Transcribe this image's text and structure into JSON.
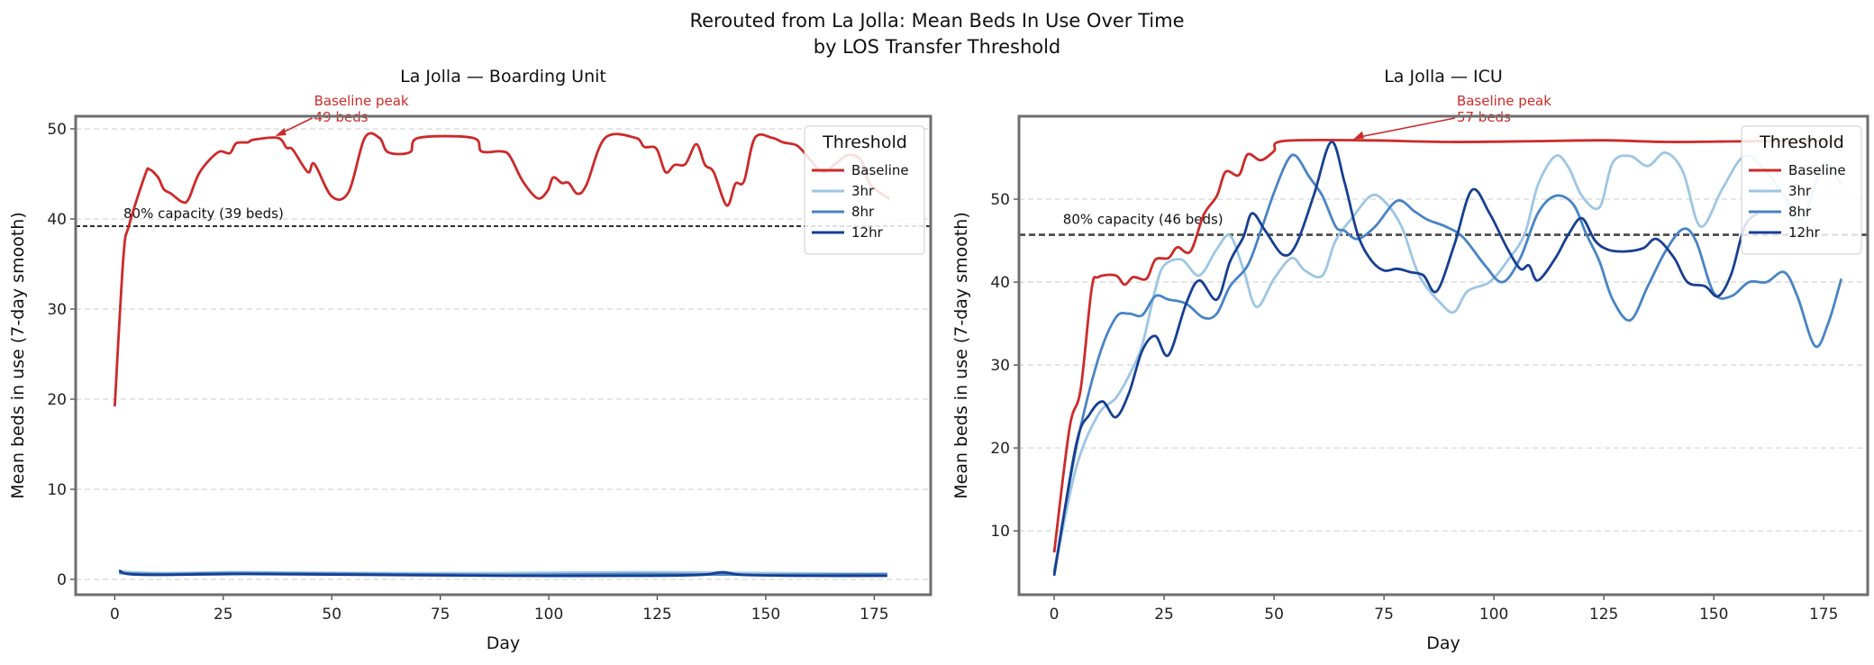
{
  "title_line1": "Rerouted from La Jolla: Mean Beds In Use Over Time",
  "title_line2": "by LOS Transfer Threshold",
  "colors": {
    "Baseline": "#cc2a2a",
    "3hr": "#9dc6e3",
    "8hr": "#4884c4",
    "12hr": "#173f92"
  },
  "chart_data": [
    {
      "type": "line",
      "title": "La Jolla — Boarding Unit",
      "xlabel": "Day",
      "ylabel": "Mean beds in use (7-day smooth)",
      "xlim": [
        -9,
        188
      ],
      "ylim": [
        -1.7,
        51.4
      ],
      "xticks": [
        0,
        25,
        50,
        75,
        100,
        125,
        150,
        175
      ],
      "yticks": [
        0,
        10,
        20,
        30,
        40,
        50
      ],
      "grid": "y, dashed",
      "legend": {
        "title": "Threshold",
        "placement": "top-right",
        "entries": [
          "Baseline",
          "3hr",
          "8hr",
          "12hr"
        ]
      },
      "capacity": {
        "value": 39.2,
        "label": "80% capacity (39 beds)"
      },
      "peak_annotation": {
        "x": 37,
        "y": 49,
        "line1": "Baseline peak",
        "line2": "49 beds"
      },
      "series": [
        {
          "name": "Baseline",
          "x": [
            0,
            2,
            3.3,
            7,
            8,
            10,
            11.3,
            13,
            15.5,
            17,
            19.6,
            23.8,
            26.5,
            28,
            30.7,
            32,
            37.6,
            39.6,
            41,
            44.5,
            46,
            50,
            53.9,
            57.6,
            61,
            63,
            68,
            70,
            82.5,
            84.5,
            89,
            91,
            94,
            97.4,
            99.7,
            101,
            103,
            104.6,
            106.6,
            108.7,
            113,
            120,
            122,
            124.8,
            126.9,
            129,
            131.5,
            134,
            136,
            138,
            141,
            143,
            145,
            147.5,
            151.5,
            154,
            157,
            159,
            163,
            166,
            169,
            172,
            174,
            178.5
          ],
          "y": [
            19.2,
            35.8,
            39.3,
            44.9,
            45.5,
            44.6,
            43.3,
            42.8,
            41.9,
            42.2,
            45.2,
            47.4,
            47.3,
            48.4,
            48.5,
            48.8,
            49.0,
            47.9,
            47.7,
            45.2,
            46.1,
            42.5,
            43.0,
            49.0,
            49.0,
            47.4,
            47.4,
            49.0,
            49.0,
            47.5,
            47.5,
            47.0,
            44.2,
            42.3,
            43.1,
            44.6,
            44.0,
            44.0,
            42.8,
            43.8,
            49.0,
            49.0,
            48.0,
            47.8,
            45.2,
            46.0,
            46.1,
            48.3,
            46.0,
            45.2,
            41.5,
            43.9,
            44.2,
            49.0,
            49.0,
            48.5,
            48.2,
            47.3,
            45.2,
            46.1,
            47.1,
            46.5,
            43.9,
            42.2
          ]
        },
        {
          "name": "3hr",
          "x": [
            1,
            10,
            30,
            60,
            90,
            120,
            150,
            178
          ],
          "y": [
            0.9,
            0.7,
            0.8,
            0.7,
            0.7,
            0.8,
            0.7,
            0.6
          ]
        },
        {
          "name": "8hr",
          "x": [
            1,
            10,
            30,
            60,
            90,
            120,
            150,
            178
          ],
          "y": [
            0.7,
            0.6,
            0.7,
            0.6,
            0.5,
            0.6,
            0.5,
            0.6
          ]
        },
        {
          "name": "12hr",
          "x": [
            1,
            3,
            10,
            30,
            60,
            90,
            120,
            135,
            140,
            145,
            160,
            178
          ],
          "y": [
            1.0,
            0.6,
            0.5,
            0.6,
            0.5,
            0.4,
            0.4,
            0.5,
            0.8,
            0.5,
            0.4,
            0.4
          ]
        }
      ]
    },
    {
      "type": "line",
      "title": "La Jolla — ICU",
      "xlabel": "Day",
      "ylabel": "Mean beds in use (7-day smooth)",
      "xlim": [
        -8,
        185
      ],
      "ylim": [
        2.3,
        60
      ],
      "xticks": [
        0,
        25,
        50,
        75,
        100,
        125,
        150,
        175
      ],
      "yticks": [
        10,
        20,
        30,
        40,
        50
      ],
      "grid": "y, dashed",
      "legend": {
        "title": "Threshold",
        "placement": "top-right",
        "entries": [
          "Baseline",
          "3hr",
          "8hr",
          "12hr"
        ]
      },
      "capacity": {
        "value": 45.7,
        "label": "80% capacity (46 beds)"
      },
      "peak_annotation": {
        "x": 68,
        "y": 57,
        "line1": "Baseline peak",
        "line2": "57 beds"
      },
      "series": [
        {
          "name": "Baseline",
          "x": [
            0,
            3.5,
            6,
            8.5,
            10,
            14,
            16,
            18,
            21,
            23,
            26,
            28,
            31,
            34,
            37,
            39,
            42,
            44,
            47,
            50,
            52,
            70,
            90,
            110,
            125,
            140,
            160,
            179
          ],
          "y": [
            7.4,
            22.4,
            27,
            39.1,
            40.6,
            40.8,
            39.7,
            40.6,
            40.4,
            42.7,
            42.9,
            44.2,
            43.7,
            48.1,
            50.4,
            53.3,
            52.9,
            55.4,
            54.7,
            55.8,
            57,
            57.1,
            56.9,
            57,
            57.1,
            56.9,
            57,
            57
          ]
        },
        {
          "name": "3hr",
          "x": [
            0,
            5,
            10,
            14,
            17,
            20,
            23,
            25,
            29,
            33,
            37,
            40,
            43,
            46,
            50,
            54,
            57,
            61,
            64,
            68,
            72,
            75,
            79,
            83,
            88,
            91,
            94,
            99,
            103,
            107,
            110,
            114,
            117,
            120,
            124,
            127,
            131,
            135,
            139,
            143,
            147,
            152,
            157,
            162,
            166,
            170,
            175,
            179
          ],
          "y": [
            5,
            17.6,
            24,
            26,
            28.7,
            32.4,
            39.1,
            42,
            42.7,
            40.8,
            44,
            45.6,
            41.6,
            37,
            40.4,
            42.9,
            41.4,
            40.8,
            45,
            47.9,
            50.4,
            49.8,
            46.7,
            40.8,
            37.4,
            36.4,
            38.9,
            40,
            42.5,
            45.8,
            51.7,
            55.2,
            53.8,
            50.4,
            49,
            54.4,
            55.2,
            54,
            55.6,
            53.3,
            46.7,
            51.3,
            55.2,
            53.3,
            50.4,
            47.5,
            54.2,
            51.7
          ]
        },
        {
          "name": "8hr",
          "x": [
            0,
            5,
            10,
            14,
            17,
            20,
            23,
            26,
            30,
            34,
            37,
            40,
            44,
            47,
            50,
            53,
            55,
            58,
            61,
            64,
            66,
            69,
            73,
            78,
            82,
            85,
            89,
            93,
            98,
            102,
            106,
            110,
            114,
            118,
            121,
            124,
            127,
            131,
            135,
            139,
            143,
            146,
            150,
            154,
            158,
            162,
            166,
            169,
            173,
            176,
            179
          ],
          "y": [
            5,
            20,
            30.7,
            35.7,
            36.2,
            36,
            38.3,
            37.9,
            37.4,
            35.7,
            36.2,
            39.5,
            42,
            46.2,
            50.8,
            54.6,
            55.2,
            52.7,
            50.4,
            46.7,
            46.2,
            45.2,
            46.7,
            49.8,
            48.5,
            47.5,
            46.7,
            45.4,
            42,
            40,
            42.9,
            48.3,
            50.4,
            49.4,
            45.8,
            42.5,
            37.9,
            35.4,
            39.5,
            43.7,
            46.4,
            44.9,
            38.7,
            38.3,
            40,
            40,
            41.2,
            38.3,
            32.3,
            35,
            40.4
          ]
        },
        {
          "name": "12hr",
          "x": [
            0,
            5,
            8,
            11,
            14,
            17,
            20,
            23,
            26,
            30,
            33,
            37,
            40,
            43,
            45,
            48,
            52,
            55,
            59,
            63,
            66,
            69,
            72,
            75,
            78,
            81,
            84,
            87,
            91,
            95,
            99,
            103,
            106,
            108,
            110,
            114,
            117,
            120,
            123,
            126,
            130,
            134,
            137,
            141,
            144,
            148,
            151,
            154,
            157,
            160
          ],
          "y": [
            4.6,
            20.4,
            24,
            25.6,
            23.7,
            26.6,
            31.7,
            33.5,
            31.2,
            37.4,
            40.2,
            37.9,
            42.5,
            45.4,
            48.3,
            46.2,
            43.3,
            44.5,
            50.4,
            56.9,
            52.1,
            45.8,
            42.7,
            41.4,
            41.6,
            41.2,
            40.8,
            38.9,
            44.5,
            51.1,
            48.3,
            44.1,
            41.6,
            42,
            40.2,
            42.9,
            45.8,
            47.7,
            45,
            43.9,
            43.7,
            44.1,
            45.2,
            42.9,
            40,
            39.5,
            38.3,
            41,
            46.7,
            48.3
          ]
        }
      ]
    }
  ]
}
